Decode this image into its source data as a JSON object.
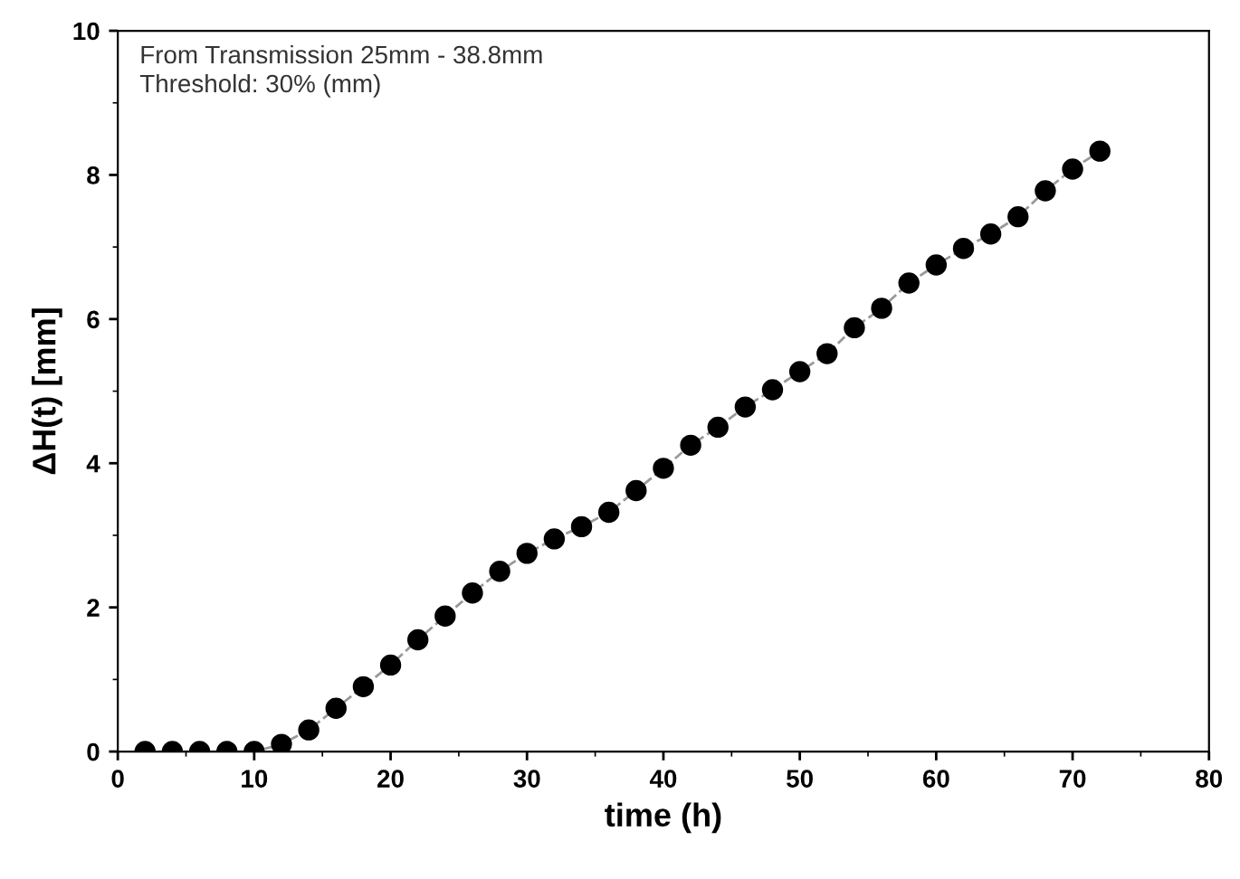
{
  "chart_data": {
    "type": "scatter",
    "xlabel": "time (h)",
    "ylabel": "ΔH(t) [mm]",
    "annotations": [
      "From Transmission 25mm - 38.8mm\nThreshold: 30% (mm)"
    ],
    "x": [
      2,
      4,
      6,
      8,
      10,
      12,
      14,
      16,
      18,
      20,
      22,
      24,
      26,
      28,
      30,
      32,
      34,
      36,
      38,
      40,
      42,
      44,
      46,
      48,
      50,
      52,
      54,
      56,
      58,
      60,
      62,
      64,
      66,
      68,
      70,
      72
    ],
    "series": [
      {
        "type": "line",
        "color": "#999999",
        "line_style": "dashed",
        "marker": "none",
        "values": [
          0,
          0,
          0,
          0,
          0,
          0.1,
          0.3,
          0.6,
          0.9,
          1.2,
          1.55,
          1.88,
          2.2,
          2.5,
          2.75,
          2.95,
          3.12,
          3.32,
          3.62,
          3.93,
          4.25,
          4.5,
          4.78,
          5.02,
          5.27,
          5.52,
          5.88,
          6.15,
          6.5,
          6.75,
          6.98,
          7.18,
          7.42,
          7.78,
          8.08,
          8.33
        ]
      },
      {
        "color": "#000000",
        "marker": "circle",
        "values": [
          0,
          0,
          0,
          0,
          0,
          0.1,
          0.3,
          0.6,
          0.9,
          1.2,
          1.55,
          1.88,
          2.2,
          2.5,
          2.75,
          2.95,
          3.12,
          3.32,
          3.62,
          3.93,
          4.25,
          4.5,
          4.78,
          5.02,
          5.27,
          5.52,
          5.88,
          6.15,
          6.5,
          6.75,
          6.98,
          7.18,
          7.42,
          7.78,
          8.08,
          8.33
        ]
      }
    ],
    "xlim": [
      0,
      80
    ],
    "xticks": [
      0,
      10,
      20,
      30,
      40,
      50,
      60,
      70,
      80
    ],
    "ylim": [
      0,
      10
    ],
    "yticks": [
      0,
      2,
      4,
      6,
      8,
      10
    ],
    "grid": false,
    "legend": false
  }
}
